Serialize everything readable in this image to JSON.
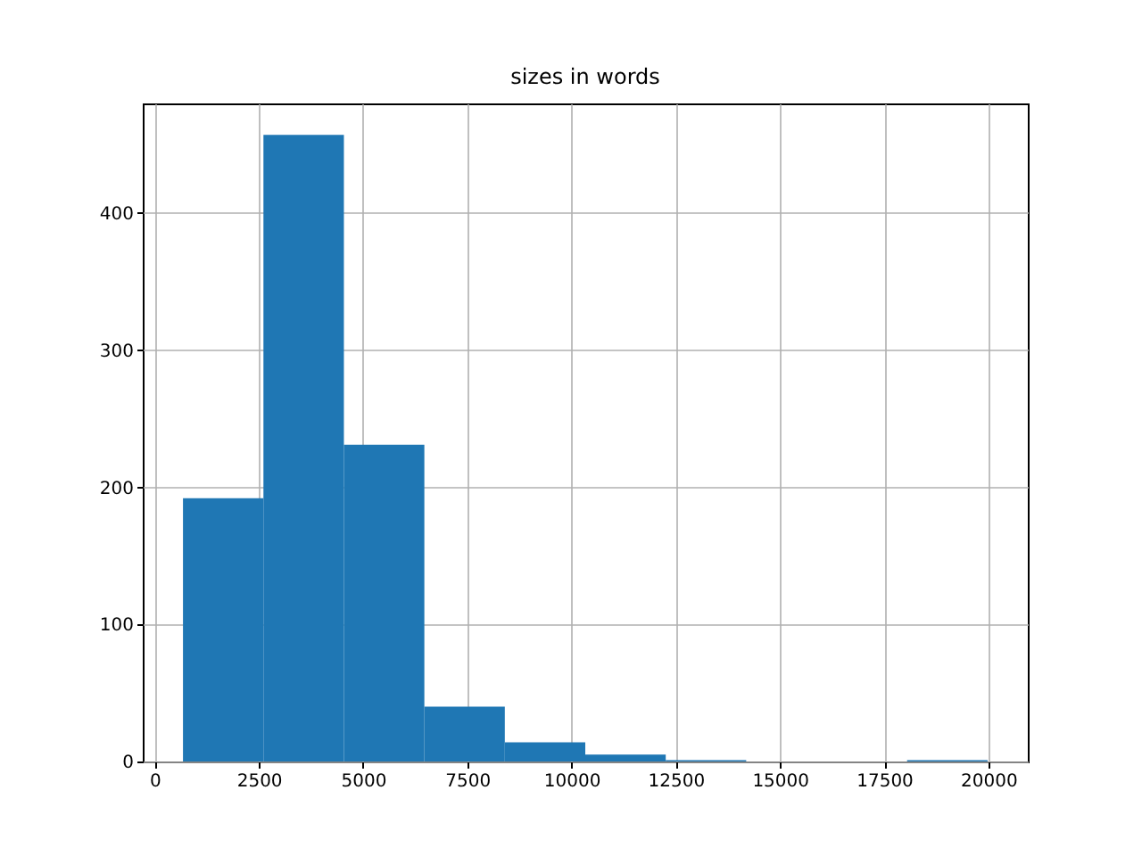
{
  "chart_data": {
    "type": "histogram",
    "title": "sizes in words",
    "bins": [
      680,
      2610,
      4540,
      6470,
      8400,
      10330,
      12260,
      14190,
      16120,
      18050,
      19980
    ],
    "values": [
      192,
      457,
      231,
      40,
      14,
      5,
      1,
      0,
      0,
      1
    ],
    "color": "#1f77b4",
    "xlim": [
      -285,
      20945
    ],
    "xticks": [
      0,
      2500,
      5000,
      7500,
      10000,
      12500,
      15000,
      17500,
      20000
    ],
    "ylim": [
      0,
      480
    ],
    "yticks": [
      0,
      100,
      200,
      300,
      400
    ],
    "grid": true
  }
}
